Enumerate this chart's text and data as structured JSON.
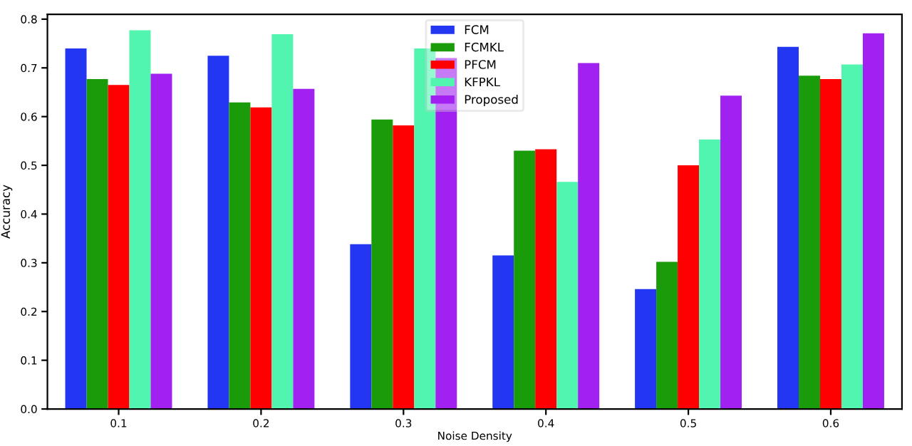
{
  "chart_data": {
    "type": "bar",
    "xlabel": "Noise Density",
    "ylabel": "Accuracy",
    "categories": [
      "0.1",
      "0.2",
      "0.3",
      "0.4",
      "0.5",
      "0.6"
    ],
    "series": [
      {
        "name": "FCM",
        "color": "#2337f2",
        "values": [
          0.74,
          0.725,
          0.338,
          0.315,
          0.246,
          0.743
        ]
      },
      {
        "name": "FCMKL",
        "color": "#1a9c0a",
        "values": [
          0.677,
          0.629,
          0.594,
          0.53,
          0.302,
          0.684
        ]
      },
      {
        "name": "PFCM",
        "color": "#fe0000",
        "values": [
          0.665,
          0.619,
          0.582,
          0.533,
          0.5,
          0.677
        ]
      },
      {
        "name": "KFPKL",
        "color": "#52f5b0",
        "values": [
          0.777,
          0.769,
          0.74,
          0.466,
          0.553,
          0.707
        ]
      },
      {
        "name": "Proposed",
        "color": "#a021f0",
        "values": [
          0.688,
          0.657,
          0.72,
          0.71,
          0.643,
          0.771
        ]
      }
    ],
    "ylim": [
      0,
      0.81
    ],
    "yticks": [
      {
        "value": 0,
        "label": "0.0"
      },
      0.1,
      0.2,
      0.3,
      0.4,
      0.5,
      0.6,
      0.7,
      0.8
    ],
    "legend": "top",
    "grid": false
  }
}
